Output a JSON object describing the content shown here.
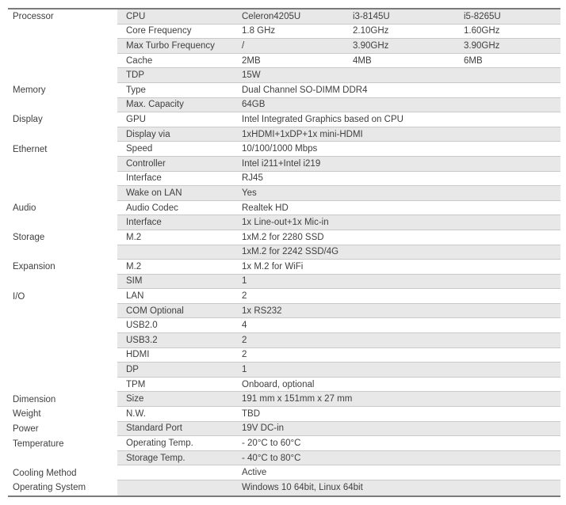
{
  "colors": {
    "stripe": "#e8e8e8",
    "row_line": "#c9c9c9",
    "table_border": "#7b7b7b",
    "text": "#3f3f3f",
    "page_bg": "#ffffff"
  },
  "table": {
    "rows": [
      {
        "category": "Processor",
        "attribute": "CPU",
        "values": [
          "Celeron4205U",
          "i3-8145U",
          "i5-8265U"
        ]
      },
      {
        "category": "",
        "attribute": "Core Frequency",
        "values": [
          "1.8 GHz",
          "2.10GHz",
          "1.60GHz"
        ]
      },
      {
        "category": "",
        "attribute": "Max Turbo Frequency",
        "values": [
          "/",
          "3.90GHz",
          "3.90GHz"
        ]
      },
      {
        "category": "",
        "attribute": "Cache",
        "values": [
          "2MB",
          "4MB",
          "6MB"
        ]
      },
      {
        "category": "",
        "attribute": "TDP",
        "values": [
          "15W"
        ]
      },
      {
        "category": "Memory",
        "attribute": "Type",
        "values": [
          "Dual Channel SO-DIMM DDR4"
        ]
      },
      {
        "category": "",
        "attribute": "Max. Capacity",
        "values": [
          "64GB"
        ]
      },
      {
        "category": "Display",
        "attribute": "GPU",
        "values": [
          "Intel Integrated Graphics based on CPU"
        ]
      },
      {
        "category": "",
        "attribute": "Display via",
        "values": [
          "1xHDMI+1xDP+1x mini-HDMI"
        ]
      },
      {
        "category": "Ethernet",
        "attribute": "Speed",
        "values": [
          "10/100/1000 Mbps"
        ]
      },
      {
        "category": "",
        "attribute": "Controller",
        "values": [
          "Intel i211+Intel i219"
        ]
      },
      {
        "category": "",
        "attribute": "Interface",
        "values": [
          "RJ45"
        ]
      },
      {
        "category": "",
        "attribute": "Wake on LAN",
        "values": [
          "Yes"
        ]
      },
      {
        "category": "Audio",
        "attribute": "Audio Codec",
        "values": [
          "Realtek HD"
        ]
      },
      {
        "category": "",
        "attribute": "Interface",
        "values": [
          "1x Line-out+1x Mic-in"
        ]
      },
      {
        "category": "Storage",
        "attribute": "M.2",
        "values": [
          "1xM.2 for 2280 SSD"
        ]
      },
      {
        "category": "",
        "attribute": "",
        "values": [
          "1xM.2 for 2242 SSD/4G"
        ]
      },
      {
        "category": "Expansion",
        "attribute": "M.2",
        "values": [
          "1x M.2 for WiFi"
        ]
      },
      {
        "category": "",
        "attribute": "SIM",
        "values": [
          "1"
        ]
      },
      {
        "category": "I/O",
        "attribute": "LAN",
        "values": [
          "2"
        ]
      },
      {
        "category": "",
        "attribute": "COM Optional",
        "values": [
          "1x RS232"
        ]
      },
      {
        "category": "",
        "attribute": "USB2.0",
        "values": [
          "4"
        ]
      },
      {
        "category": "",
        "attribute": "USB3.2",
        "values": [
          "2"
        ]
      },
      {
        "category": "",
        "attribute": "HDMI",
        "values": [
          "2"
        ]
      },
      {
        "category": "",
        "attribute": "DP",
        "values": [
          "1"
        ]
      },
      {
        "category": "",
        "attribute": "TPM",
        "values": [
          "Onboard, optional"
        ]
      },
      {
        "category": "Dimension",
        "attribute": "Size",
        "values": [
          "191 mm x 151mm x 27 mm"
        ]
      },
      {
        "category": "Weight",
        "attribute": "N.W.",
        "values": [
          "TBD"
        ]
      },
      {
        "category": "Power",
        "attribute": "Standard Port",
        "values": [
          "19V DC-in"
        ]
      },
      {
        "category": "Temperature",
        "attribute": "Operating Temp.",
        "values": [
          "- 20°C to 60°C"
        ]
      },
      {
        "category": "",
        "attribute": "Storage Temp.",
        "values": [
          "- 40°C to 80°C"
        ]
      },
      {
        "category": "Cooling Method",
        "attribute": "",
        "values": [
          "Active"
        ]
      },
      {
        "category": "Operating System",
        "attribute": "",
        "values": [
          "Windows 10 64bit, Linux 64bit"
        ]
      }
    ]
  }
}
